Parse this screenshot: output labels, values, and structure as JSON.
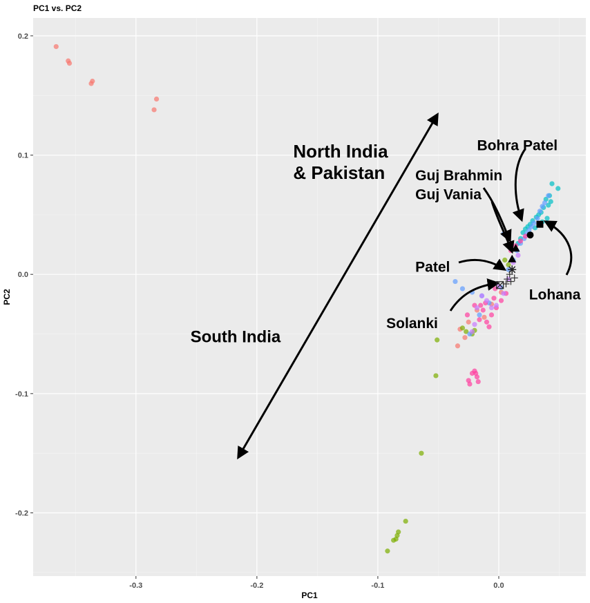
{
  "chart_data": {
    "type": "scatter",
    "title": "PC1 vs. PC2",
    "xlabel": "PC1",
    "ylabel": "PC2",
    "xlim": [
      -0.385,
      0.072
    ],
    "ylim": [
      -0.253,
      0.215
    ],
    "x_ticks": [
      -0.3,
      -0.2,
      -0.1,
      0.0
    ],
    "x_tick_labels": [
      "-0.3",
      "-0.2",
      "-0.1",
      "0.0"
    ],
    "y_ticks": [
      0.2,
      0.1,
      0.0,
      -0.1,
      -0.2
    ],
    "y_tick_labels": [
      "0.2",
      "0.1",
      "0.0",
      "-0.1",
      "-0.2"
    ],
    "grid": true,
    "legend": "none",
    "series": [
      {
        "color": "#F8766D",
        "points": [
          [
            -0.366,
            0.191
          ],
          [
            -0.356,
            0.179
          ],
          [
            -0.355,
            0.177
          ],
          [
            -0.336,
            0.162
          ],
          [
            -0.337,
            0.16
          ],
          [
            -0.283,
            0.147
          ],
          [
            -0.285,
            0.138
          ],
          [
            -0.032,
            -0.046
          ],
          [
            -0.028,
            -0.053
          ],
          [
            -0.034,
            -0.06
          ],
          [
            -0.025,
            -0.04
          ],
          [
            -0.018,
            -0.03
          ],
          [
            -0.012,
            -0.036
          ],
          [
            -0.006,
            -0.025
          ],
          [
            0.002,
            -0.015
          ]
        ]
      },
      {
        "color": "#7CAE00",
        "points": [
          [
            -0.051,
            -0.055
          ],
          [
            -0.052,
            -0.085
          ],
          [
            -0.064,
            -0.15
          ],
          [
            -0.077,
            -0.207
          ],
          [
            -0.083,
            -0.216
          ],
          [
            -0.084,
            -0.219
          ],
          [
            -0.085,
            -0.222
          ],
          [
            -0.087,
            -0.223
          ],
          [
            -0.092,
            -0.232
          ],
          [
            -0.03,
            -0.045
          ],
          [
            -0.027,
            -0.048
          ],
          [
            -0.022,
            -0.05
          ],
          [
            -0.02,
            -0.047
          ],
          [
            0.008,
            0.008
          ],
          [
            0.005,
            0.012
          ]
        ]
      },
      {
        "color": "#00BFC4",
        "points": [
          [
            0.044,
            0.076
          ],
          [
            0.049,
            0.072
          ],
          [
            0.042,
            0.066
          ],
          [
            0.039,
            0.063
          ],
          [
            0.041,
            0.058
          ],
          [
            0.037,
            0.056
          ],
          [
            0.035,
            0.052
          ],
          [
            0.033,
            0.05
          ],
          [
            0.031,
            0.048
          ],
          [
            0.028,
            0.045
          ],
          [
            0.026,
            0.042
          ],
          [
            0.024,
            0.04
          ],
          [
            0.022,
            0.038
          ],
          [
            0.02,
            0.035
          ],
          [
            0.018,
            0.03
          ],
          [
            0.016,
            0.026
          ],
          [
            0.036,
            0.044
          ],
          [
            0.04,
            0.047
          ],
          [
            0.03,
            0.039
          ],
          [
            0.043,
            0.061
          ]
        ]
      },
      {
        "color": "#619CFF",
        "points": [
          [
            0.041,
            0.066
          ],
          [
            0.038,
            0.06
          ],
          [
            0.036,
            0.057
          ],
          [
            0.034,
            0.053
          ],
          [
            0.032,
            0.047
          ],
          [
            0.029,
            0.043
          ],
          [
            0.027,
            0.04
          ],
          [
            0.025,
            0.037
          ],
          [
            0.023,
            0.034
          ],
          [
            0.021,
            0.03
          ],
          [
            0.018,
            0.026
          ],
          [
            0.015,
            0.02
          ],
          [
            0.012,
            0.012
          ],
          [
            0.008,
            0.004
          ],
          [
            0.004,
            0.034
          ],
          [
            -0.036,
            -0.006
          ],
          [
            -0.03,
            -0.012
          ],
          [
            -0.022,
            -0.015
          ],
          [
            -0.014,
            -0.018
          ],
          [
            -0.008,
            -0.024
          ],
          [
            -0.016,
            -0.034
          ],
          [
            -0.024,
            -0.05
          ],
          [
            0.002,
            -0.011
          ]
        ]
      },
      {
        "color": "#FF3F9F",
        "points": [
          [
            -0.02,
            -0.081
          ],
          [
            -0.019,
            -0.083
          ],
          [
            -0.018,
            -0.086
          ],
          [
            -0.022,
            -0.083
          ],
          [
            -0.017,
            -0.09
          ],
          [
            -0.025,
            -0.089
          ],
          [
            -0.024,
            -0.092
          ],
          [
            -0.01,
            -0.04
          ],
          [
            -0.006,
            -0.034
          ],
          [
            -0.002,
            -0.028
          ],
          [
            0.002,
            -0.022
          ],
          [
            0.006,
            -0.016
          ],
          [
            -0.016,
            -0.038
          ],
          [
            -0.02,
            -0.026
          ],
          [
            -0.013,
            -0.03
          ],
          [
            -0.004,
            -0.02
          ],
          [
            -0.008,
            -0.044
          ],
          [
            -0.026,
            -0.034
          ],
          [
            0.01,
            0.02
          ],
          [
            0.014,
            0.024
          ],
          [
            0.018,
            0.028
          ],
          [
            0.022,
            0.032
          ],
          [
            -0.003,
            -0.012
          ],
          [
            -0.011,
            -0.024
          ],
          [
            -0.015,
            -0.026
          ]
        ]
      },
      {
        "color": "#C77CFF",
        "points": [
          [
            -0.014,
            -0.018
          ],
          [
            -0.01,
            -0.022
          ],
          [
            -0.006,
            -0.028
          ],
          [
            -0.002,
            -0.026
          ],
          [
            0.004,
            -0.016
          ],
          [
            0.008,
            -0.004
          ],
          [
            0.012,
            0.01
          ],
          [
            0.016,
            0.016
          ],
          [
            -0.018,
            -0.028
          ],
          [
            -0.022,
            -0.048
          ],
          [
            -0.02,
            -0.042
          ],
          [
            0.0,
            -0.01
          ]
        ]
      }
    ],
    "markers": [
      {
        "label": "Bohra Patel",
        "shape": "circle",
        "x": 0.026,
        "y": 0.033
      },
      {
        "label": "Lohana",
        "shape": "square",
        "x": 0.034,
        "y": 0.042
      },
      {
        "label": "Guj Brahmin",
        "shape": "triangle",
        "x": 0.014,
        "y": 0.022
      },
      {
        "label": "Guj Vania",
        "shape": "triangle",
        "x": 0.011,
        "y": 0.013
      },
      {
        "label": "Patel",
        "shape": "star",
        "x": 0.011,
        "y": 0.004
      },
      {
        "label": "Solanki",
        "shape": "boxed-x",
        "x": 0.001,
        "y": -0.009
      }
    ],
    "annotations": [
      {
        "text": "North India",
        "x": -0.17,
        "y": 0.098,
        "size": 26
      },
      {
        "text": "& Pakistan",
        "x": -0.17,
        "y": 0.08,
        "size": 26
      },
      {
        "text": "South India",
        "x": -0.255,
        "y": -0.057,
        "size": 24
      },
      {
        "text": "Bohra Patel",
        "x": -0.018,
        "y": 0.104,
        "size": 21
      },
      {
        "text": "Guj Brahmin",
        "x": -0.069,
        "y": 0.079,
        "size": 21
      },
      {
        "text": "Guj Vania",
        "x": -0.069,
        "y": 0.063,
        "size": 21
      },
      {
        "text": "Patel",
        "x": -0.069,
        "y": 0.002,
        "size": 21
      },
      {
        "text": "Solanki",
        "x": -0.093,
        "y": -0.045,
        "size": 21
      },
      {
        "text": "Lohana",
        "x": 0.025,
        "y": -0.021,
        "size": 21
      }
    ]
  }
}
